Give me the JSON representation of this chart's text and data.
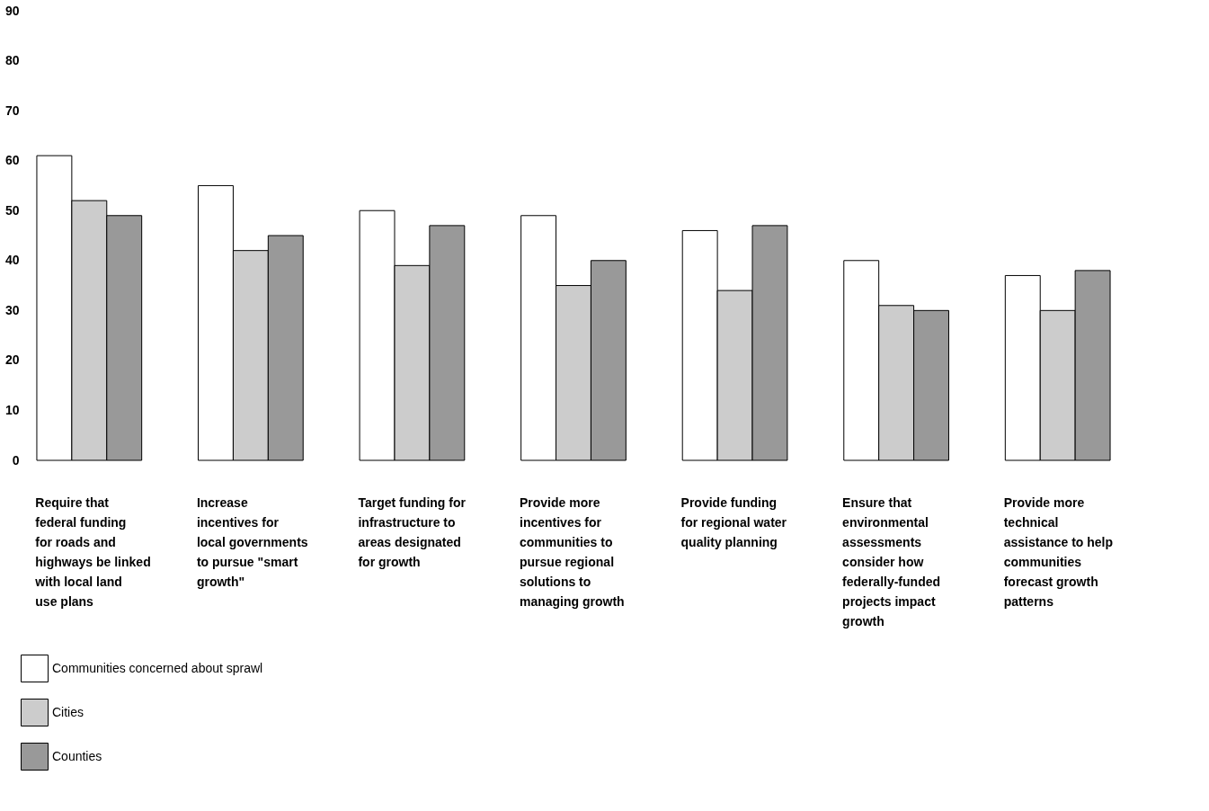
{
  "chart_data": {
    "type": "bar",
    "categories": [
      "Require that federal funding for roads and highways be linked with local land use plans",
      "Increase incentives for local governments to pursue \"smart growth\"",
      "Target funding for infrastructure to areas designated for growth",
      "Provide more incentives for communities to pursue regional solutions to managing growth",
      "Provide funding for regional water quality planning",
      "Ensure that environmental assessments consider how federally-funded projects impact growth",
      "Provide more technical assistance to help communities forecast growth patterns"
    ],
    "series": [
      {
        "name": "Communities concerned about sprawl",
        "color": "#ffffff",
        "values": [
          61,
          55,
          50,
          49,
          46,
          40,
          37
        ]
      },
      {
        "name": "Cities",
        "color": "#cccccc",
        "values": [
          52,
          42,
          39,
          35,
          34,
          31,
          30
        ]
      },
      {
        "name": "Counties",
        "color": "#999999",
        "values": [
          49,
          45,
          47,
          40,
          47,
          30,
          38
        ]
      }
    ],
    "ylim": [
      0,
      90
    ],
    "yticks": [
      0,
      10,
      20,
      30,
      40,
      50,
      60,
      70,
      80,
      90
    ],
    "grid": false,
    "legend": "bottom left"
  }
}
